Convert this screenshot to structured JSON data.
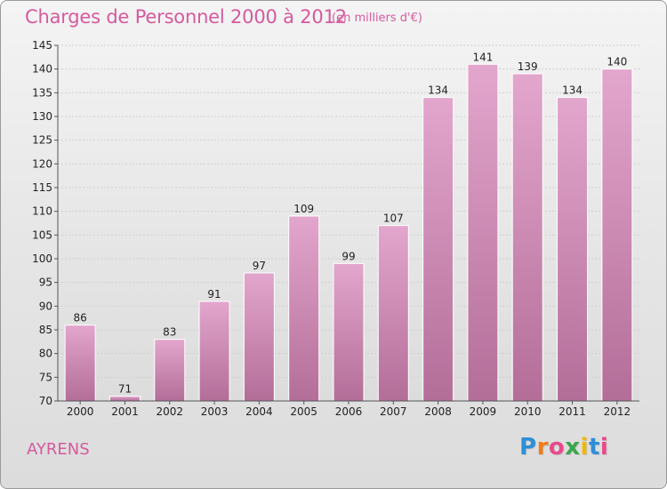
{
  "title": "Charges de Personnel 2000 à 2012",
  "subtitle": "(en milliers d'€)",
  "commune": "AYRENS",
  "logo": {
    "letters": [
      "P",
      "r",
      "o",
      "x",
      "i",
      "t",
      "i"
    ],
    "colors": [
      "#2f8fd6",
      "#f07c1a",
      "#e84a8a",
      "#3aa64a",
      "#f2b800",
      "#2f8fd6",
      "#e84a8a"
    ]
  },
  "colors": {
    "accent": "#d55a9e",
    "bar_top": "#e3a6cd",
    "bar_bottom": "#b36e98"
  },
  "chart_data": {
    "type": "bar",
    "categories": [
      "2000",
      "2001",
      "2002",
      "2003",
      "2004",
      "2005",
      "2006",
      "2007",
      "2008",
      "2009",
      "2010",
      "2011",
      "2012"
    ],
    "values": [
      86,
      71,
      83,
      91,
      97,
      109,
      99,
      107,
      134,
      141,
      139,
      134,
      140
    ],
    "ylim": [
      70,
      145
    ],
    "yticks": [
      70,
      75,
      80,
      85,
      90,
      95,
      100,
      105,
      110,
      115,
      120,
      125,
      130,
      135,
      140,
      145
    ],
    "grid": true,
    "xlabel": "",
    "ylabel": ""
  }
}
